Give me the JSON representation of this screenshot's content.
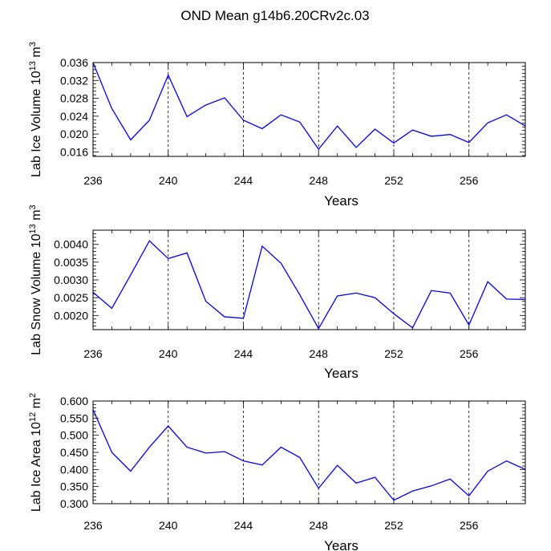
{
  "title": "OND Mean g14b6.20CRv2c.03",
  "colors": {
    "line": "#0000ff",
    "axis": "#000000",
    "grid": "#000000"
  },
  "chart_data": [
    {
      "type": "line",
      "title": "",
      "xlabel": "Years",
      "ylabel": {
        "main": "Lab Ice Volume 10",
        "exp": "13",
        "unit": " m",
        "unit_exp": "3"
      },
      "xlim": [
        236,
        259
      ],
      "ylim": [
        0.015,
        0.036
      ],
      "xticks": [
        236,
        240,
        244,
        248,
        252,
        256
      ],
      "yticks": [
        0.016,
        0.02,
        0.024,
        0.028,
        0.032,
        0.036
      ],
      "yticklabels": [
        "0.016",
        "0.020",
        "0.024",
        "0.028",
        "0.032",
        "0.036"
      ],
      "grid_x": [
        240,
        244,
        248,
        252,
        256
      ],
      "x": [
        236,
        237,
        238,
        239,
        240,
        241,
        242,
        243,
        244,
        245,
        246,
        247,
        248,
        249,
        250,
        251,
        252,
        253,
        254,
        255,
        256,
        257,
        258,
        259
      ],
      "values": [
        0.036,
        0.0257,
        0.0187,
        0.0231,
        0.0332,
        0.0239,
        0.0265,
        0.0281,
        0.0231,
        0.0212,
        0.0243,
        0.0227,
        0.0166,
        0.0218,
        0.017,
        0.0211,
        0.018,
        0.0209,
        0.0195,
        0.0199,
        0.0181,
        0.0225,
        0.0243,
        0.0218
      ]
    },
    {
      "type": "line",
      "title": "",
      "xlabel": "Years",
      "ylabel": {
        "main": "Lab Snow Volume 10",
        "exp": "13",
        "unit": " m",
        "unit_exp": "3"
      },
      "xlim": [
        236,
        259
      ],
      "ylim": [
        0.0016,
        0.0044
      ],
      "xticks": [
        236,
        240,
        244,
        248,
        252,
        256
      ],
      "yticks": [
        0.002,
        0.0025,
        0.003,
        0.0035,
        0.004
      ],
      "yticklabels": [
        "0.0020",
        "0.0025",
        "0.0030",
        "0.0035",
        "0.0040"
      ],
      "grid_x": [
        240,
        244,
        248,
        252,
        256
      ],
      "x": [
        236,
        237,
        238,
        239,
        240,
        241,
        242,
        243,
        244,
        245,
        246,
        247,
        248,
        249,
        250,
        251,
        252,
        253,
        254,
        255,
        256,
        257,
        258,
        259
      ],
      "values": [
        0.00265,
        0.0022,
        0.00314,
        0.0041,
        0.0036,
        0.00376,
        0.0024,
        0.00196,
        0.00192,
        0.00395,
        0.00347,
        0.00258,
        0.00163,
        0.00255,
        0.00263,
        0.0025,
        0.00205,
        0.00165,
        0.0027,
        0.00263,
        0.00173,
        0.00295,
        0.00246,
        0.00245
      ]
    },
    {
      "type": "line",
      "title": "",
      "xlabel": "Years",
      "ylabel": {
        "main": "Lab Ice Area 10",
        "exp": "12",
        "unit": " m",
        "unit_exp": "2"
      },
      "xlim": [
        236,
        259
      ],
      "ylim": [
        0.3,
        0.6
      ],
      "xticks": [
        236,
        240,
        244,
        248,
        252,
        256
      ],
      "yticks": [
        0.3,
        0.35,
        0.4,
        0.45,
        0.5,
        0.55,
        0.6
      ],
      "yticklabels": [
        "0.300",
        "0.350",
        "0.400",
        "0.450",
        "0.500",
        "0.550",
        "0.600"
      ],
      "grid_x": [
        240,
        244,
        248,
        252,
        256
      ],
      "x": [
        236,
        237,
        238,
        239,
        240,
        241,
        242,
        243,
        244,
        245,
        246,
        247,
        248,
        249,
        250,
        251,
        252,
        253,
        254,
        255,
        256,
        257,
        258,
        259
      ],
      "values": [
        0.575,
        0.45,
        0.395,
        0.465,
        0.527,
        0.465,
        0.448,
        0.452,
        0.425,
        0.413,
        0.465,
        0.435,
        0.345,
        0.412,
        0.36,
        0.377,
        0.31,
        0.337,
        0.352,
        0.372,
        0.323,
        0.395,
        0.425,
        0.4
      ]
    }
  ]
}
